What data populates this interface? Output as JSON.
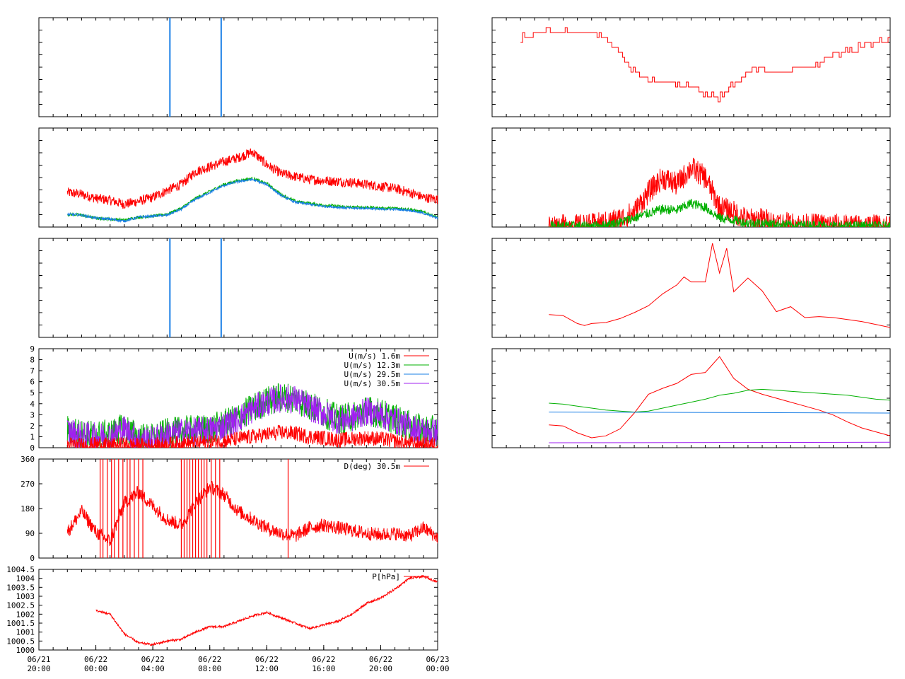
{
  "colors": {
    "red": "#ff0000",
    "green": "#00b000",
    "blue": "#1a7fe6",
    "purple": "#a020f0",
    "frame": "#000000"
  },
  "x_axis": {
    "tick_labels": [
      {
        "date": "06/21",
        "time": "20:00"
      },
      {
        "date": "06/22",
        "time": "00:00"
      },
      {
        "date": "06/22",
        "time": "04:00"
      },
      {
        "date": "06/22",
        "time": "08:00"
      },
      {
        "date": "06/22",
        "time": "12:00"
      },
      {
        "date": "06/22",
        "time": "16:00"
      },
      {
        "date": "06/22",
        "time": "20:00"
      },
      {
        "date": "06/23",
        "time": "00:00"
      }
    ],
    "range_hours": [
      0,
      28
    ]
  },
  "chart_data": [
    {
      "id": "L1",
      "type": "line",
      "title": "",
      "xlabel": "",
      "ylabel": "",
      "yticks_labels": [],
      "legend": [],
      "series": [
        {
          "color": "blue",
          "kind": "vlines",
          "x": [
            9.2,
            12.8
          ]
        }
      ]
    },
    {
      "id": "L2",
      "type": "line",
      "title": "",
      "xlabel": "",
      "ylabel": "",
      "yticks_labels": [],
      "legend": [],
      "ylim": [
        0,
        10
      ],
      "series": [
        {
          "color": "red",
          "noise": 0.5,
          "x": [
            2,
            3,
            4,
            5,
            6,
            7,
            8,
            9,
            10,
            11,
            12,
            13,
            14,
            15,
            16,
            17,
            18,
            19,
            20,
            21,
            22,
            23,
            24,
            25,
            26,
            27,
            28
          ],
          "y": [
            3.5,
            3.3,
            2.9,
            2.7,
            2.3,
            2.6,
            3.0,
            3.7,
            4.3,
            5.6,
            6.1,
            6.6,
            7.0,
            7.6,
            6.3,
            5.4,
            5.1,
            4.8,
            4.7,
            4.6,
            4.5,
            4.3,
            4.1,
            3.9,
            3.5,
            3.0,
            2.8
          ]
        },
        {
          "color": "green",
          "noise": 0.15,
          "x": [
            2,
            3,
            4,
            5,
            6,
            7,
            8,
            9,
            10,
            11,
            12,
            13,
            14,
            15,
            16,
            17,
            18,
            19,
            20,
            21,
            22,
            23,
            24,
            25,
            26,
            27,
            28
          ],
          "y": [
            1.3,
            1.2,
            0.9,
            0.8,
            0.7,
            1.0,
            1.1,
            1.3,
            1.9,
            2.9,
            3.6,
            4.3,
            4.7,
            4.9,
            4.4,
            3.3,
            2.6,
            2.4,
            2.2,
            2.1,
            2.0,
            2.0,
            1.9,
            1.9,
            1.8,
            1.5,
            1.0
          ]
        },
        {
          "color": "blue",
          "noise": 0.12,
          "x": [
            2,
            3,
            4,
            5,
            6,
            7,
            8,
            9,
            10,
            11,
            12,
            13,
            14,
            15,
            16,
            17,
            18,
            19,
            20,
            21,
            22,
            23,
            24,
            25,
            26,
            27,
            28
          ],
          "y": [
            1.3,
            1.2,
            0.9,
            0.8,
            0.6,
            1.0,
            1.1,
            1.2,
            1.8,
            2.8,
            3.5,
            4.2,
            4.6,
            4.8,
            4.3,
            3.2,
            2.5,
            2.3,
            2.1,
            2.0,
            1.9,
            1.9,
            1.8,
            1.8,
            1.7,
            1.4,
            0.9
          ]
        }
      ]
    },
    {
      "id": "L3",
      "type": "line",
      "title": "",
      "xlabel": "",
      "ylabel": "",
      "yticks_labels": [],
      "legend": [],
      "series": [
        {
          "color": "blue",
          "kind": "vlines",
          "x": [
            9.2,
            12.8
          ]
        }
      ]
    },
    {
      "id": "L4",
      "type": "line",
      "title": "",
      "xlabel": "",
      "ylabel": "",
      "ylim": [
        0,
        9
      ],
      "yticks_labels": [
        "0",
        "1",
        "2",
        "3",
        "4",
        "5",
        "6",
        "7",
        "8",
        "9"
      ],
      "legend": [
        {
          "label": "U(m/s)  1.6m",
          "color": "red"
        },
        {
          "label": "U(m/s) 12.3m",
          "color": "green"
        },
        {
          "label": "U(m/s) 29.5m",
          "color": "blue"
        },
        {
          "label": "U(m/s) 30.5m",
          "color": "purple"
        }
      ],
      "series": [
        {
          "color": "green",
          "noise": 1.4,
          "x": [
            2,
            3,
            4,
            5,
            6,
            7,
            8,
            9,
            10,
            11,
            12,
            13,
            14,
            15,
            16,
            17,
            18,
            19,
            20,
            21,
            22,
            23,
            24,
            25,
            26,
            27,
            28
          ],
          "y": [
            1.6,
            1.2,
            1.1,
            1.2,
            1.8,
            0.9,
            0.8,
            1.3,
            1.5,
            1.6,
            1.7,
            2.1,
            2.7,
            3.6,
            4.2,
            4.6,
            4.5,
            3.8,
            3.2,
            2.6,
            2.8,
            3.4,
            3.1,
            2.6,
            2.0,
            1.6,
            1.5
          ]
        },
        {
          "color": "purple",
          "noise": 1.3,
          "x": [
            2,
            3,
            4,
            5,
            6,
            7,
            8,
            9,
            10,
            11,
            12,
            13,
            14,
            15,
            16,
            17,
            18,
            19,
            20,
            21,
            22,
            23,
            24,
            25,
            26,
            27,
            28
          ],
          "y": [
            1.5,
            1.1,
            1.0,
            1.1,
            1.7,
            0.8,
            0.7,
            1.2,
            1.4,
            1.5,
            1.6,
            2.0,
            2.6,
            3.5,
            4.1,
            4.5,
            4.4,
            3.7,
            3.1,
            2.5,
            2.7,
            3.3,
            3.0,
            2.5,
            1.9,
            1.5,
            1.4
          ]
        },
        {
          "color": "red",
          "noise": 0.7,
          "x": [
            2,
            3,
            4,
            5,
            6,
            7,
            8,
            9,
            10,
            11,
            12,
            13,
            14,
            15,
            16,
            17,
            18,
            19,
            20,
            21,
            22,
            23,
            24,
            25,
            26,
            27,
            28
          ],
          "y": [
            0.3,
            0.2,
            0.3,
            0.2,
            0.3,
            0.2,
            0.2,
            0.3,
            0.4,
            0.4,
            0.5,
            0.6,
            0.8,
            1.0,
            1.2,
            1.4,
            1.3,
            1.0,
            0.9,
            0.7,
            0.8,
            0.9,
            0.8,
            0.6,
            0.4,
            0.3,
            0.3
          ]
        }
      ]
    },
    {
      "id": "L5",
      "type": "line",
      "title": "",
      "xlabel": "",
      "ylabel": "",
      "ylim": [
        0,
        360
      ],
      "yticks_labels": [
        "0",
        "90",
        "180",
        "270",
        "360"
      ],
      "legend": [
        {
          "label": "D(deg)  30.5m",
          "color": "red"
        }
      ],
      "series": [
        {
          "color": "red",
          "noise": 25,
          "x": [
            2,
            3,
            4,
            5,
            6,
            7,
            8,
            9,
            10,
            11,
            12,
            13,
            14,
            15,
            16,
            17,
            18,
            19,
            20,
            21,
            22,
            23,
            24,
            25,
            26,
            27,
            28
          ],
          "y": [
            95,
            170,
            95,
            60,
            200,
            240,
            190,
            140,
            120,
            200,
            260,
            230,
            170,
            140,
            110,
            90,
            80,
            110,
            120,
            110,
            100,
            90,
            85,
            90,
            80,
            110,
            75
          ]
        },
        {
          "color": "red",
          "kind": "spikes",
          "x": [
            4.3,
            4.5,
            4.8,
            5.1,
            5.3,
            5.6,
            5.9,
            6.2,
            6.4,
            6.7,
            7.0,
            7.3,
            10.0,
            10.2,
            10.4,
            10.6,
            10.8,
            11.0,
            11.2,
            11.4,
            11.6,
            11.8,
            12.1,
            12.4,
            12.7,
            17.5
          ],
          "y": [
            360,
            360,
            360,
            360,
            360,
            360,
            360,
            360,
            360,
            360,
            360,
            360,
            360,
            360,
            360,
            360,
            360,
            360,
            360,
            360,
            360,
            360,
            360,
            360,
            360,
            360
          ]
        }
      ]
    },
    {
      "id": "L6",
      "type": "line",
      "title": "",
      "xlabel": "",
      "ylabel": "",
      "ylim": [
        1000,
        1004.5
      ],
      "yticks_labels": [
        "1000",
        "1000.5",
        "1001",
        "1001.5",
        "1002",
        "1002.5",
        "1003",
        "1003.5",
        "1004",
        "1004.5"
      ],
      "legend": [
        {
          "label": "P[hPa]",
          "color": "red"
        }
      ],
      "series": [
        {
          "color": "red",
          "noise": 0.06,
          "x": [
            4,
            5,
            6,
            7,
            8,
            9,
            10,
            11,
            12,
            13,
            14,
            15,
            16,
            17,
            18,
            19,
            20,
            21,
            22,
            23,
            24,
            25,
            26,
            27,
            28
          ],
          "y": [
            1002.2,
            1002.0,
            1000.9,
            1000.4,
            1000.3,
            1000.5,
            1000.6,
            1001.0,
            1001.3,
            1001.3,
            1001.6,
            1001.9,
            1002.1,
            1001.8,
            1001.5,
            1001.2,
            1001.4,
            1001.6,
            1002.0,
            1002.6,
            1002.9,
            1003.4,
            1004.0,
            1004.1,
            1003.8
          ]
        }
      ]
    },
    {
      "id": "R1",
      "type": "line",
      "title": "",
      "xlabel": "",
      "ylabel": "",
      "yticks_labels": [],
      "legend": [],
      "ylim": [
        0,
        10
      ],
      "series": [
        {
          "color": "red",
          "kind": "step",
          "x": [
            2,
            3,
            4,
            5,
            6,
            7,
            8,
            9,
            10,
            11,
            12,
            13,
            14,
            15,
            16,
            17,
            18,
            19,
            20,
            21,
            22,
            23,
            24,
            25,
            26,
            27,
            28
          ],
          "y": [
            8.0,
            8.5,
            8.7,
            8.6,
            8.5,
            8.5,
            7.9,
            6.3,
            4.4,
            3.8,
            3.3,
            3.4,
            3.0,
            2.3,
            1.9,
            3.3,
            4.6,
            4.7,
            4.6,
            4.8,
            5.0,
            5.5,
            6.2,
            6.7,
            7.1,
            7.6,
            8.0
          ]
        }
      ]
    },
    {
      "id": "R2",
      "type": "line",
      "title": "",
      "xlabel": "",
      "ylabel": "",
      "yticks_labels": [],
      "legend": [],
      "ylim": [
        0,
        10
      ],
      "series": [
        {
          "color": "red",
          "noise": 1.2,
          "x": [
            4,
            5,
            6,
            7,
            8,
            9,
            10,
            11,
            12,
            13,
            14,
            15,
            16,
            17,
            18,
            19,
            20,
            21,
            22,
            23,
            24,
            25,
            26,
            27,
            28
          ],
          "y": [
            0.1,
            0.1,
            0.1,
            0.2,
            0.4,
            0.8,
            1.5,
            3.5,
            5.0,
            4.3,
            6.0,
            5.0,
            2.0,
            1.5,
            0.7,
            0.8,
            0.4,
            0.3,
            0.2,
            0.2,
            0.2,
            0.1,
            0.1,
            0.1,
            0.1
          ]
        },
        {
          "color": "green",
          "noise": 0.5,
          "x": [
            4,
            5,
            6,
            7,
            8,
            9,
            10,
            11,
            12,
            13,
            14,
            15,
            16,
            17,
            18,
            19,
            20,
            21,
            22,
            23,
            24,
            25,
            26,
            27,
            28
          ],
          "y": [
            0.1,
            0.1,
            0.1,
            0.1,
            0.2,
            0.5,
            0.9,
            1.4,
            1.8,
            1.7,
            2.4,
            2.0,
            0.9,
            0.7,
            0.4,
            0.4,
            0.3,
            0.2,
            0.2,
            0.2,
            0.1,
            0.1,
            0.1,
            0.1,
            0.1
          ]
        }
      ]
    },
    {
      "id": "R3",
      "type": "line",
      "title": "",
      "xlabel": "",
      "ylabel": "",
      "yticks_labels": [],
      "legend": [],
      "ylim": [
        0,
        10
      ],
      "series": [
        {
          "color": "red",
          "x": [
            4,
            5,
            6,
            6.5,
            7,
            8,
            9,
            10,
            11,
            12,
            13,
            13.5,
            14,
            15,
            15.5,
            16,
            16.5,
            17,
            18,
            19,
            20,
            21,
            22,
            23,
            24,
            25,
            26,
            27,
            28
          ],
          "y": [
            2.3,
            2.2,
            1.4,
            1.2,
            1.4,
            1.5,
            1.9,
            2.5,
            3.2,
            4.4,
            5.3,
            6.1,
            5.6,
            5.6,
            9.5,
            6.5,
            9.0,
            4.6,
            6.0,
            4.7,
            2.6,
            3.1,
            2.0,
            2.1,
            2.0,
            1.8,
            1.6,
            1.3,
            1.0
          ]
        }
      ]
    },
    {
      "id": "R4",
      "type": "line",
      "title": "",
      "xlabel": "",
      "ylabel": "",
      "yticks_labels": [],
      "legend": [],
      "ylim": [
        0,
        10
      ],
      "series": [
        {
          "color": "red",
          "x": [
            4,
            5,
            6,
            7,
            8,
            9,
            10,
            11,
            12,
            13,
            14,
            15,
            16,
            17,
            18,
            19,
            20,
            21,
            22,
            23,
            24,
            25,
            26,
            27,
            28
          ],
          "y": [
            2.3,
            2.2,
            1.5,
            1.0,
            1.2,
            1.9,
            3.5,
            5.4,
            6.0,
            6.5,
            7.4,
            7.6,
            9.2,
            7.0,
            5.9,
            5.4,
            5.0,
            4.6,
            4.2,
            3.8,
            3.3,
            2.6,
            2.0,
            1.6,
            1.2
          ]
        },
        {
          "color": "green",
          "x": [
            4,
            5,
            6,
            7,
            8,
            9,
            10,
            11,
            12,
            13,
            14,
            15,
            16,
            17,
            18,
            19,
            20,
            21,
            22,
            23,
            24,
            25,
            26,
            27,
            28
          ],
          "y": [
            4.5,
            4.4,
            4.2,
            4.0,
            3.8,
            3.7,
            3.6,
            3.7,
            4.0,
            4.3,
            4.6,
            4.9,
            5.3,
            5.5,
            5.8,
            5.9,
            5.8,
            5.7,
            5.6,
            5.5,
            5.4,
            5.3,
            5.1,
            4.9,
            4.8
          ]
        },
        {
          "color": "blue",
          "x": [
            4,
            28
          ],
          "y": [
            3.6,
            3.5
          ]
        },
        {
          "color": "purple",
          "x": [
            4,
            28
          ],
          "y": [
            0.5,
            0.55
          ]
        }
      ]
    }
  ]
}
